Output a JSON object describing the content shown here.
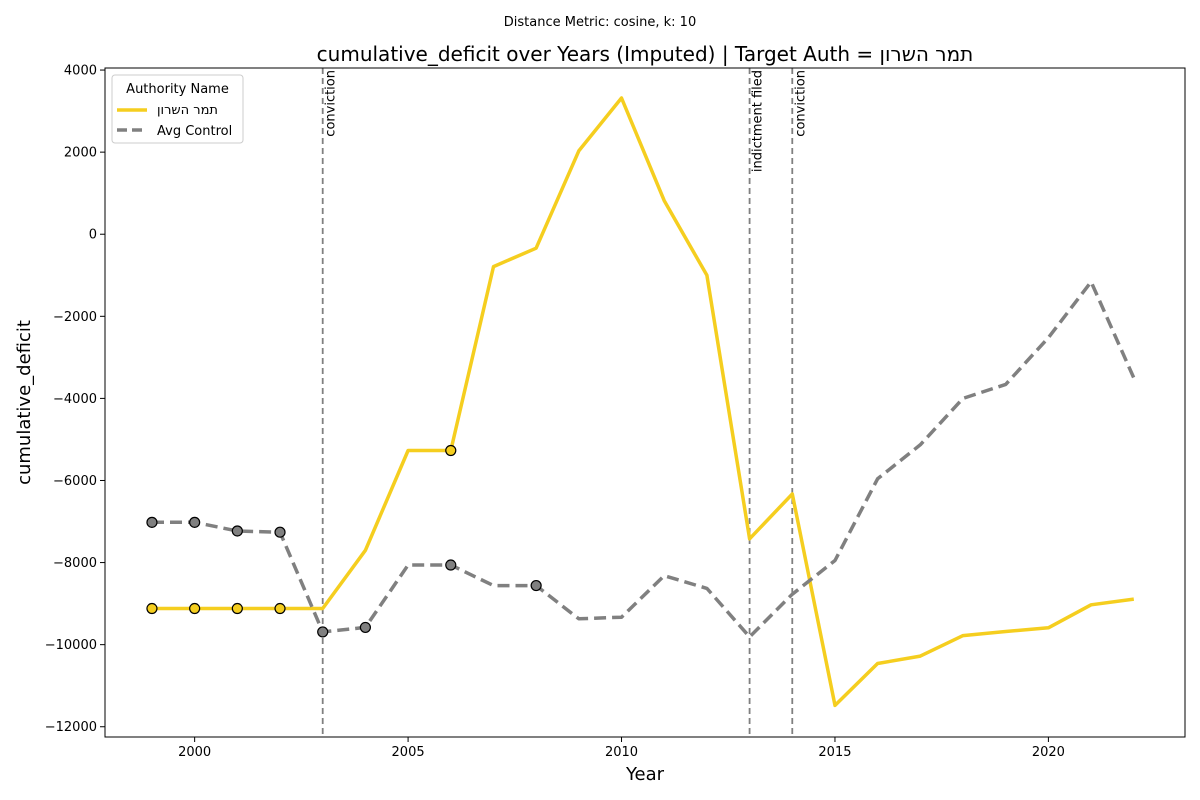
{
  "chart_data": {
    "type": "line",
    "suptitle": "Distance Metric: cosine, k: 10",
    "title": "cumulative_deficit over Years (Imputed) | Target Auth = תמר השרון",
    "xlabel": "Year",
    "ylabel": "cumulative_deficit",
    "xlim": [
      1997.9,
      2023.2
    ],
    "ylim": [
      -12250,
      4050
    ],
    "x_ticks": [
      2000,
      2005,
      2010,
      2015,
      2020
    ],
    "y_ticks": [
      -12000,
      -10000,
      -8000,
      -6000,
      -4000,
      -2000,
      0,
      2000,
      4000
    ],
    "legend": {
      "title": "Authority Name",
      "placement": "upper-left"
    },
    "series": [
      {
        "name": "תמר השרון",
        "color": "#F5CE1F",
        "style": "solid",
        "x": [
          1999,
          2000,
          2001,
          2002,
          2003,
          2004,
          2005,
          2006,
          2007,
          2008,
          2009,
          2010,
          2011,
          2012,
          2013,
          2014,
          2015,
          2016,
          2017,
          2018,
          2019,
          2020,
          2021,
          2022
        ],
        "y": [
          -9120,
          -9120,
          -9120,
          -9120,
          -9120,
          -7700,
          -5270,
          -5270,
          -790,
          -340,
          2030,
          3320,
          820,
          -1000,
          -7420,
          -6330,
          -11480,
          -10460,
          -10280,
          -9780,
          -9680,
          -9590,
          -9030,
          -8890
        ],
        "imputed_x": [
          1999,
          2000,
          2001,
          2002,
          2006
        ]
      },
      {
        "name": "Avg Control",
        "color": "#808080",
        "style": "dashed",
        "x": [
          1999,
          2000,
          2001,
          2002,
          2003,
          2004,
          2005,
          2006,
          2007,
          2008,
          2009,
          2010,
          2011,
          2012,
          2013,
          2014,
          2015,
          2016,
          2017,
          2018,
          2019,
          2020,
          2021,
          2022
        ],
        "y": [
          -7020,
          -7020,
          -7230,
          -7260,
          -9690,
          -9580,
          -8060,
          -8060,
          -8560,
          -8560,
          -9370,
          -9330,
          -8320,
          -8630,
          -9810,
          -8770,
          -7950,
          -5960,
          -5130,
          -4000,
          -3660,
          -2520,
          -1160,
          -3500
        ],
        "imputed_x": [
          1999,
          2000,
          2001,
          2002,
          2003,
          2004,
          2006,
          2008
        ]
      }
    ],
    "events": [
      {
        "x": 2003,
        "label": "conviction"
      },
      {
        "x": 2013,
        "label": "indictment filed"
      },
      {
        "x": 2014,
        "label": "conviction"
      }
    ]
  }
}
